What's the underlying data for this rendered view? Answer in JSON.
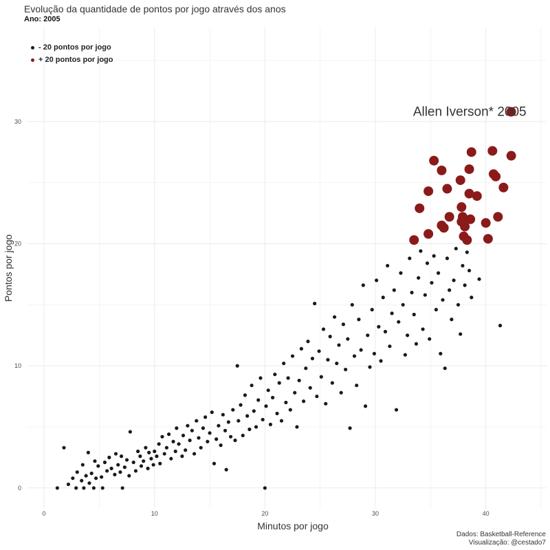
{
  "header": {
    "title": "Evolução da quantidade de pontos por jogo através dos anos",
    "subtitle": "Ano: 2005"
  },
  "caption": {
    "line1": "Dados: Basketball-Reference",
    "line2": "Visualização: @cestado7"
  },
  "colors": {
    "low": "#1a1a1a",
    "high": "#8b1a1a",
    "grid": "#ebebeb"
  },
  "chart_data": {
    "type": "scatter",
    "title": "Evolução da quantidade de pontos por jogo através dos anos",
    "subtitle": "Ano: 2005",
    "xlabel": "Minutos por jogo",
    "ylabel": "Pontos por jogo",
    "xlim": [
      -1.5,
      45.5
    ],
    "ylim": [
      -1.7,
      37.7
    ],
    "x_ticks": [
      0,
      10,
      20,
      30,
      40
    ],
    "y_ticks": [
      0,
      10,
      20,
      30
    ],
    "grid": true,
    "legend_position": "top-left",
    "legend": [
      "- 20 pontos por jogo",
      "+ 20 pontos por jogo"
    ],
    "annotation": {
      "text": "Allen Iverson* 2005",
      "x": 42.3,
      "y": 30.8
    },
    "series": [
      {
        "name": "+ 20 pontos por jogo",
        "color": "#8b1a1a",
        "points": [
          [
            33.5,
            20.3
          ],
          [
            34.0,
            22.9
          ],
          [
            34.8,
            24.3
          ],
          [
            34.8,
            20.8
          ],
          [
            35.3,
            26.8
          ],
          [
            36.0,
            26.0
          ],
          [
            36.0,
            21.5
          ],
          [
            36.2,
            21.3
          ],
          [
            36.5,
            24.5
          ],
          [
            36.7,
            22.2
          ],
          [
            37.7,
            25.2
          ],
          [
            37.8,
            23.0
          ],
          [
            37.8,
            21.8
          ],
          [
            37.9,
            22.2
          ],
          [
            38.0,
            20.6
          ],
          [
            38.1,
            21.4
          ],
          [
            38.3,
            20.3
          ],
          [
            38.5,
            24.1
          ],
          [
            38.5,
            26.1
          ],
          [
            38.6,
            22.0
          ],
          [
            38.7,
            27.5
          ],
          [
            39.2,
            23.9
          ],
          [
            40.0,
            21.7
          ],
          [
            40.2,
            20.4
          ],
          [
            40.6,
            27.6
          ],
          [
            40.7,
            25.7
          ],
          [
            40.9,
            25.5
          ],
          [
            41.1,
            22.2
          ],
          [
            41.6,
            24.6
          ],
          [
            42.3,
            27.2
          ],
          [
            42.3,
            30.8
          ]
        ]
      },
      {
        "name": "- 20 pontos por jogo",
        "color": "#1a1a1a",
        "points": [
          [
            1.2,
            0.0
          ],
          [
            1.8,
            3.3
          ],
          [
            2.2,
            0.3
          ],
          [
            2.6,
            0.8
          ],
          [
            2.9,
            0.0
          ],
          [
            3.0,
            1.3
          ],
          [
            3.4,
            0.6
          ],
          [
            3.5,
            1.9
          ],
          [
            3.6,
            0.0
          ],
          [
            3.8,
            1.0
          ],
          [
            4.0,
            2.9
          ],
          [
            4.1,
            0.4
          ],
          [
            4.3,
            1.2
          ],
          [
            4.5,
            0.0
          ],
          [
            4.6,
            2.2
          ],
          [
            4.7,
            0.8
          ],
          [
            4.9,
            1.8
          ],
          [
            5.2,
            0.9
          ],
          [
            5.3,
            0.0
          ],
          [
            5.5,
            2.1
          ],
          [
            5.7,
            1.4
          ],
          [
            5.9,
            2.5
          ],
          [
            6.1,
            1.6
          ],
          [
            6.4,
            1.1
          ],
          [
            6.5,
            2.8
          ],
          [
            6.7,
            1.9
          ],
          [
            6.9,
            1.3
          ],
          [
            7.0,
            2.6
          ],
          [
            7.1,
            0.0
          ],
          [
            7.3,
            1.7
          ],
          [
            7.5,
            2.3
          ],
          [
            7.7,
            1.0
          ],
          [
            7.8,
            4.6
          ],
          [
            8.1,
            2.1
          ],
          [
            8.3,
            1.4
          ],
          [
            8.5,
            3.0
          ],
          [
            8.7,
            2.6
          ],
          [
            8.8,
            1.8
          ],
          [
            9.0,
            2.2
          ],
          [
            9.2,
            3.3
          ],
          [
            9.4,
            1.6
          ],
          [
            9.5,
            2.9
          ],
          [
            9.7,
            2.4
          ],
          [
            9.9,
            1.9
          ],
          [
            10.0,
            3.0
          ],
          [
            10.2,
            2.6
          ],
          [
            10.4,
            3.6
          ],
          [
            10.5,
            2.0
          ],
          [
            10.7,
            4.2
          ],
          [
            10.9,
            2.8
          ],
          [
            11.1,
            3.3
          ],
          [
            11.3,
            4.4
          ],
          [
            11.5,
            2.4
          ],
          [
            11.7,
            3.8
          ],
          [
            11.9,
            3.0
          ],
          [
            12.0,
            4.9
          ],
          [
            12.2,
            3.6
          ],
          [
            12.5,
            2.6
          ],
          [
            12.6,
            4.3
          ],
          [
            12.8,
            3.1
          ],
          [
            13.0,
            5.1
          ],
          [
            13.2,
            3.9
          ],
          [
            13.4,
            4.7
          ],
          [
            13.6,
            2.8
          ],
          [
            13.8,
            5.5
          ],
          [
            14.0,
            4.1
          ],
          [
            14.2,
            3.3
          ],
          [
            14.4,
            4.9
          ],
          [
            14.6,
            5.8
          ],
          [
            14.8,
            3.8
          ],
          [
            15.0,
            4.5
          ],
          [
            15.2,
            6.2
          ],
          [
            15.4,
            2.0
          ],
          [
            15.6,
            4.0
          ],
          [
            15.8,
            5.1
          ],
          [
            16.0,
            3.5
          ],
          [
            16.2,
            6.0
          ],
          [
            16.4,
            4.7
          ],
          [
            16.5,
            1.5
          ],
          [
            16.7,
            5.4
          ],
          [
            16.9,
            4.2
          ],
          [
            17.1,
            6.4
          ],
          [
            17.3,
            3.9
          ],
          [
            17.5,
            10.0
          ],
          [
            17.6,
            5.5
          ],
          [
            17.8,
            6.8
          ],
          [
            18.0,
            4.3
          ],
          [
            18.2,
            7.6
          ],
          [
            18.4,
            5.9
          ],
          [
            18.6,
            4.8
          ],
          [
            18.8,
            8.4
          ],
          [
            19.0,
            6.3
          ],
          [
            19.2,
            5.0
          ],
          [
            19.4,
            7.2
          ],
          [
            19.6,
            9.0
          ],
          [
            19.8,
            5.6
          ],
          [
            20.0,
            0.0
          ],
          [
            20.1,
            6.7
          ],
          [
            20.3,
            8.0
          ],
          [
            20.5,
            5.2
          ],
          [
            20.7,
            7.4
          ],
          [
            20.9,
            9.3
          ],
          [
            21.1,
            6.1
          ],
          [
            21.3,
            8.6
          ],
          [
            21.5,
            5.5
          ],
          [
            21.7,
            10.2
          ],
          [
            21.9,
            7.0
          ],
          [
            22.1,
            9.0
          ],
          [
            22.3,
            6.4
          ],
          [
            22.5,
            10.8
          ],
          [
            22.7,
            7.8
          ],
          [
            22.9,
            5.0
          ],
          [
            23.1,
            8.8
          ],
          [
            23.3,
            11.4
          ],
          [
            23.5,
            7.1
          ],
          [
            23.7,
            9.8
          ],
          [
            23.9,
            12.0
          ],
          [
            24.1,
            8.2
          ],
          [
            24.3,
            10.6
          ],
          [
            24.5,
            15.1
          ],
          [
            24.7,
            7.5
          ],
          [
            24.9,
            11.2
          ],
          [
            25.1,
            9.1
          ],
          [
            25.3,
            13.0
          ],
          [
            25.5,
            6.9
          ],
          [
            25.7,
            10.5
          ],
          [
            25.9,
            12.4
          ],
          [
            26.1,
            8.6
          ],
          [
            26.3,
            14.0
          ],
          [
            26.5,
            10.2
          ],
          [
            26.7,
            11.7
          ],
          [
            26.9,
            7.8
          ],
          [
            27.1,
            13.4
          ],
          [
            27.3,
            9.7
          ],
          [
            27.5,
            12.2
          ],
          [
            27.7,
            4.9
          ],
          [
            27.9,
            15.0
          ],
          [
            28.1,
            10.8
          ],
          [
            28.3,
            8.4
          ],
          [
            28.5,
            13.8
          ],
          [
            28.7,
            11.3
          ],
          [
            28.9,
            16.6
          ],
          [
            29.1,
            6.7
          ],
          [
            29.3,
            12.5
          ],
          [
            29.5,
            9.9
          ],
          [
            29.7,
            14.6
          ],
          [
            29.9,
            11.0
          ],
          [
            30.1,
            17.0
          ],
          [
            30.3,
            13.2
          ],
          [
            30.5,
            10.4
          ],
          [
            30.7,
            15.6
          ],
          [
            30.9,
            12.8
          ],
          [
            31.1,
            18.2
          ],
          [
            31.3,
            11.6
          ],
          [
            31.5,
            14.3
          ],
          [
            31.7,
            16.2
          ],
          [
            31.9,
            6.4
          ],
          [
            32.1,
            13.6
          ],
          [
            32.3,
            17.6
          ],
          [
            32.5,
            15.0
          ],
          [
            32.7,
            10.9
          ],
          [
            32.9,
            12.5
          ],
          [
            33.1,
            18.8
          ],
          [
            33.3,
            16.0
          ],
          [
            33.5,
            14.2
          ],
          [
            33.7,
            11.8
          ],
          [
            33.9,
            17.2
          ],
          [
            34.1,
            19.4
          ],
          [
            34.3,
            13.0
          ],
          [
            34.5,
            15.8
          ],
          [
            34.7,
            18.4
          ],
          [
            34.9,
            12.2
          ],
          [
            35.1,
            16.8
          ],
          [
            35.3,
            19.0
          ],
          [
            35.5,
            14.6
          ],
          [
            35.7,
            17.6
          ],
          [
            35.9,
            11.0
          ],
          [
            36.1,
            15.4
          ],
          [
            36.3,
            9.8
          ],
          [
            36.5,
            18.8
          ],
          [
            36.7,
            16.2
          ],
          [
            36.9,
            13.8
          ],
          [
            37.1,
            17.0
          ],
          [
            37.3,
            19.6
          ],
          [
            37.5,
            15.0
          ],
          [
            37.7,
            12.6
          ],
          [
            37.9,
            18.2
          ],
          [
            38.1,
            16.6
          ],
          [
            38.3,
            19.3
          ],
          [
            38.5,
            17.8
          ],
          [
            38.7,
            15.6
          ],
          [
            39.4,
            17.1
          ],
          [
            41.3,
            13.3
          ]
        ]
      }
    ]
  }
}
